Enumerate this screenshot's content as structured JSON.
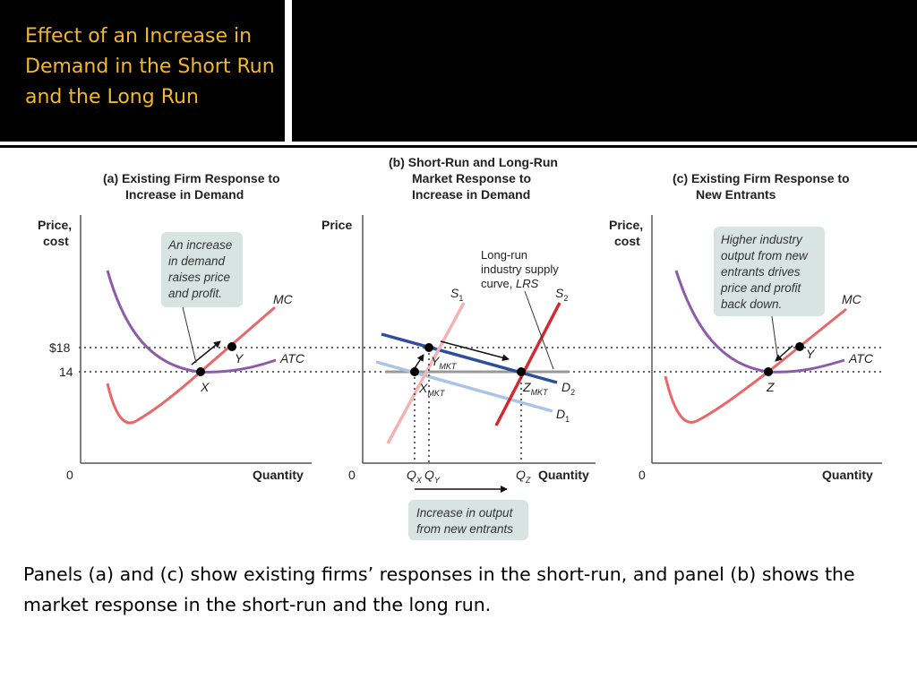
{
  "title": "Effect of an Increase in Demand in the Short Run and the Long Run",
  "caption": "Panels (a) and (c) show existing firms’ responses in the short-run, and panel (b) shows the market response in the short-run and the long run.",
  "colors": {
    "mc": "#e8686a",
    "atc": "#8e5ba8",
    "supply_short_run_1": "#f2b3b3",
    "supply_short_run_2": "#d42a2f",
    "demand_1": "#a9c4e4",
    "demand_2": "#2e4e9c",
    "long_run_supply": "#999999",
    "callout_bg": "#d8e4e1"
  },
  "panel_a": {
    "heading_line1": "(a) Existing Firm Response to",
    "heading_line2": "Increase in Demand",
    "y_axis_line1": "Price,",
    "y_axis_line2": "cost",
    "x_axis": "Quantity",
    "origin": "0",
    "price_high": "$18",
    "price_low": "14",
    "mc_label": "MC",
    "atc_label": "ATC",
    "point_x": "X",
    "point_y": "Y",
    "note_lines": [
      "An increase",
      "in demand",
      "raises price",
      "and profit."
    ]
  },
  "panel_b": {
    "heading_line1": "(b) Short-Run and Long-Run",
    "heading_line2": "Market Response to",
    "heading_line3": "Increase in Demand",
    "y_axis": "Price",
    "x_axis": "Quantity",
    "origin": "0",
    "lrs_line1": "Long-run",
    "lrs_line2": "industry supply",
    "lrs_line3": "curve,",
    "lrs_line3_italic": "LRS",
    "s1": "S",
    "s1_sub": "1",
    "s2": "S",
    "s2_sub": "2",
    "d1": "D",
    "d1_sub": "1",
    "d2": "D",
    "d2_sub": "2",
    "x_mkt": "X",
    "x_mkt_sub": "MKT",
    "y_mkt": "Y",
    "y_mkt_sub": "MKT",
    "z_mkt": "Z",
    "z_mkt_sub": "MKT",
    "qx": "Q",
    "qx_sub": "X",
    "qy": "Q",
    "qy_sub": "Y",
    "qz": "Q",
    "qz_sub": "Z",
    "note_lines": [
      "Increase in output",
      "from new entrants"
    ]
  },
  "panel_c": {
    "heading_line1": "(c) Existing Firm Response to",
    "heading_line2": "New Entrants",
    "y_axis_line1": "Price,",
    "y_axis_line2": "cost",
    "x_axis": "Quantity",
    "origin": "0",
    "mc_label": "MC",
    "atc_label": "ATC",
    "point_z": "Z",
    "point_y": "Y",
    "note_lines": [
      "Higher industry",
      "output from new",
      "entrants drives",
      "price and profit",
      "back down."
    ]
  }
}
